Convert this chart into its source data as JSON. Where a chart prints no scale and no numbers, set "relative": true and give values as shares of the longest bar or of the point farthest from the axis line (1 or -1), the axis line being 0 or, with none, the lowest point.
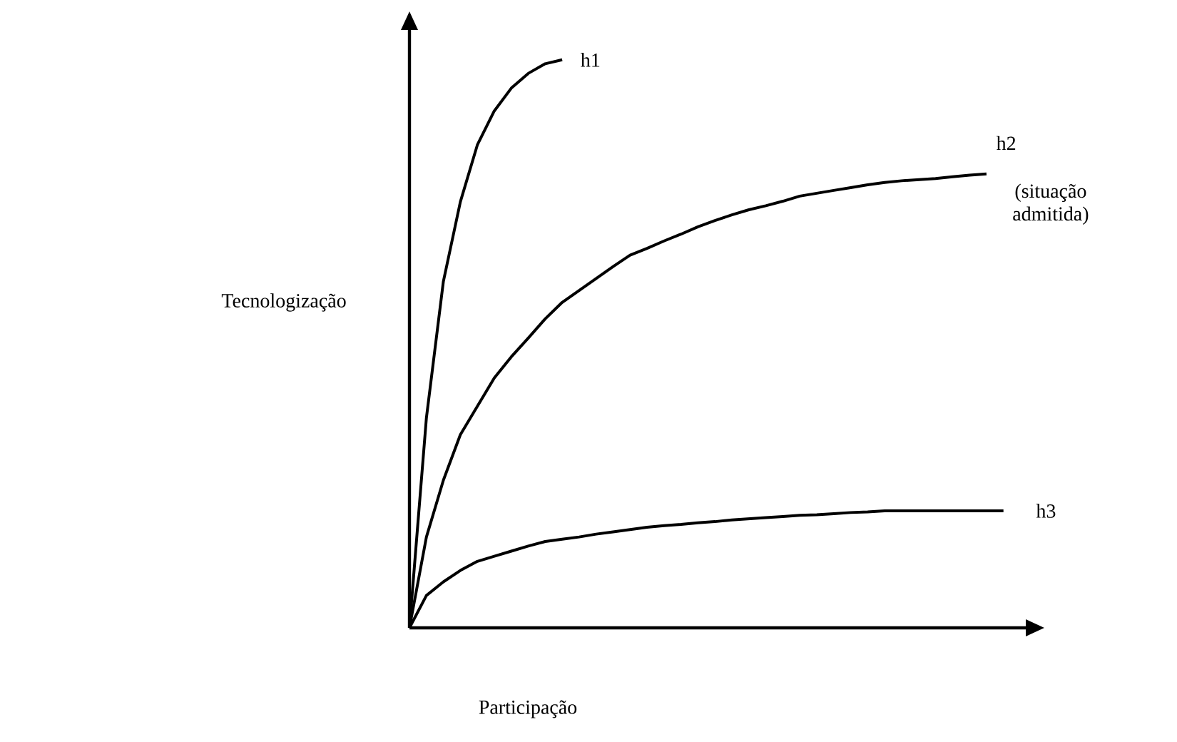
{
  "chart_data": {
    "type": "line",
    "relative": true,
    "xlabel": "Participação",
    "ylabel": "Tecnologização",
    "annotations": [
      "(situação admitida)"
    ],
    "legend": false,
    "marker": "none",
    "line_style": "solid",
    "categories": [
      null,
      null,
      null,
      null,
      null,
      null,
      null,
      null,
      null,
      null,
      null,
      null,
      null,
      null,
      null,
      null,
      null,
      null,
      null,
      null,
      null,
      null,
      null,
      null,
      null,
      null,
      null,
      null,
      null,
      null,
      null,
      null,
      null,
      null,
      null,
      null
    ],
    "series": [
      {
        "name": "h1",
        "color": "#000000",
        "values": [
          0,
          0.37,
          0.61,
          0.75,
          0.85,
          0.91,
          0.95,
          0.976,
          0.993,
          1.0,
          null,
          null,
          null,
          null,
          null,
          null,
          null,
          null,
          null,
          null,
          null,
          null,
          null,
          null,
          null,
          null,
          null,
          null,
          null,
          null,
          null,
          null,
          null,
          null,
          null,
          null
        ]
      },
      {
        "name": "h2",
        "color": "#000000",
        "values": [
          0,
          0.16,
          0.26,
          0.34,
          0.39,
          0.44,
          0.477,
          0.51,
          0.544,
          0.573,
          0.594,
          0.615,
          0.636,
          0.656,
          0.668,
          0.681,
          0.693,
          0.706,
          0.717,
          0.727,
          0.736,
          0.743,
          0.751,
          0.76,
          0.765,
          0.77,
          0.775,
          0.78,
          0.784,
          0.787,
          0.789,
          0.791,
          0.794,
          0.797,
          0.799,
          null
        ]
      },
      {
        "name": "h3",
        "color": "#000000",
        "values": [
          0,
          0.057,
          0.081,
          0.101,
          0.117,
          0.126,
          0.135,
          0.144,
          0.152,
          0.156,
          0.16,
          0.165,
          0.169,
          0.173,
          0.177,
          0.18,
          0.182,
          0.185,
          0.187,
          0.19,
          0.192,
          0.194,
          0.196,
          0.198,
          0.199,
          0.201,
          0.203,
          0.204,
          0.206,
          0.206,
          0.206,
          0.206,
          0.206,
          0.206,
          0.206,
          0.206
        ]
      }
    ]
  }
}
